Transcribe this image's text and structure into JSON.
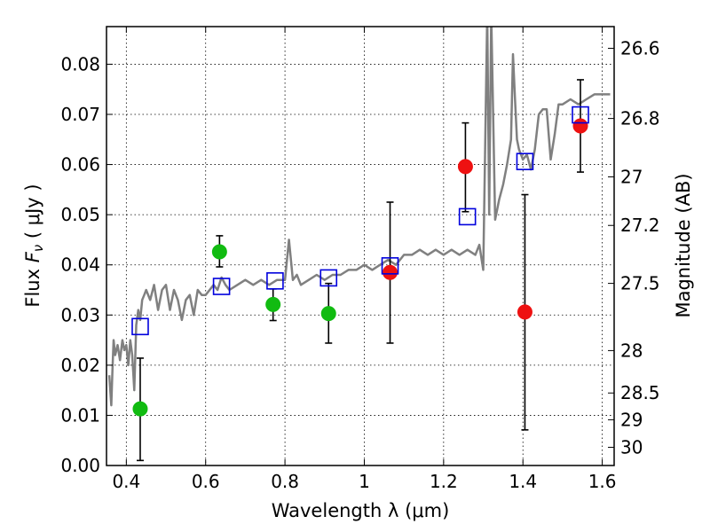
{
  "chart_data": {
    "type": "scatter",
    "title": "",
    "xlabel": "Wavelength  λ (μm)",
    "ylabel_left_prefix": "Flux  ",
    "ylabel_left_symbol": "F",
    "ylabel_left_subscript": "ν",
    "ylabel_left_suffix": "  ( μJy )",
    "ylabel_right": "Magnitude (AB)",
    "xlim": [
      0.35,
      1.63
    ],
    "ylim": [
      0.0,
      0.0875
    ],
    "grid": true,
    "x_ticks": [
      "0.4",
      "0.6",
      "0.8",
      "1",
      "1.2",
      "1.4",
      "1.6"
    ],
    "y_ticks": [
      "0.00",
      "0.01",
      "0.02",
      "0.03",
      "0.04",
      "0.05",
      "0.06",
      "0.07",
      "0.08"
    ],
    "right_axis_ticks": [
      "26.6",
      "26.8",
      "27",
      "27.2",
      "27.5",
      "28",
      "28.5",
      "29",
      "30"
    ],
    "colors": {
      "model_spectrum": "#808080",
      "green_points": "#11bb11",
      "red_points": "#ee1111",
      "model_photometry": "#0000dd",
      "errorbars": "#000000"
    },
    "series": [
      {
        "kind": "line",
        "x": [
          0.357,
          0.362,
          0.365,
          0.368,
          0.372,
          0.378,
          0.384,
          0.39,
          0.395,
          0.4,
          0.405,
          0.41,
          0.415,
          0.42,
          0.425,
          0.43,
          0.435,
          0.44,
          0.445,
          0.45,
          0.46,
          0.47,
          0.48,
          0.49,
          0.5,
          0.51,
          0.52,
          0.53,
          0.54,
          0.55,
          0.56,
          0.57,
          0.58,
          0.59,
          0.6,
          0.61,
          0.62,
          0.63,
          0.64,
          0.65,
          0.66,
          0.68,
          0.7,
          0.72,
          0.74,
          0.76,
          0.78,
          0.8,
          0.81,
          0.82,
          0.83,
          0.84,
          0.86,
          0.88,
          0.9,
          0.92,
          0.94,
          0.96,
          0.98,
          1.0,
          1.02,
          1.04,
          1.06,
          1.08,
          1.1,
          1.12,
          1.14,
          1.16,
          1.18,
          1.2,
          1.22,
          1.24,
          1.26,
          1.28,
          1.29,
          1.3,
          1.31,
          1.315,
          1.32,
          1.33,
          1.34,
          1.35,
          1.36,
          1.37,
          1.375,
          1.38,
          1.385,
          1.39,
          1.4,
          1.41,
          1.42,
          1.43,
          1.44,
          1.45,
          1.46,
          1.47,
          1.48,
          1.49,
          1.5,
          1.52,
          1.54,
          1.56,
          1.58,
          1.6,
          1.62
        ],
        "y": [
          0.018,
          0.012,
          0.019,
          0.025,
          0.022,
          0.024,
          0.021,
          0.025,
          0.023,
          0.024,
          0.02,
          0.025,
          0.022,
          0.015,
          0.028,
          0.031,
          0.029,
          0.033,
          0.034,
          0.035,
          0.033,
          0.036,
          0.031,
          0.035,
          0.036,
          0.031,
          0.035,
          0.033,
          0.029,
          0.033,
          0.034,
          0.03,
          0.035,
          0.034,
          0.034,
          0.035,
          0.036,
          0.035,
          0.0375,
          0.036,
          0.035,
          0.036,
          0.037,
          0.036,
          0.037,
          0.036,
          0.037,
          0.037,
          0.045,
          0.037,
          0.038,
          0.036,
          0.037,
          0.038,
          0.037,
          0.038,
          0.038,
          0.039,
          0.039,
          0.04,
          0.039,
          0.04,
          0.041,
          0.04,
          0.042,
          0.042,
          0.043,
          0.042,
          0.043,
          0.042,
          0.043,
          0.042,
          0.043,
          0.042,
          0.044,
          0.039,
          0.09,
          0.05,
          0.09,
          0.049,
          0.053,
          0.056,
          0.06,
          0.065,
          0.082,
          0.073,
          0.065,
          0.063,
          0.061,
          0.062,
          0.059,
          0.063,
          0.07,
          0.071,
          0.071,
          0.061,
          0.066,
          0.072,
          0.072,
          0.073,
          0.072,
          0.073,
          0.074,
          0.074,
          0.074
        ]
      },
      {
        "kind": "points",
        "marker": "circle",
        "color": "green",
        "x": [
          0.435,
          0.635,
          0.77,
          0.91
        ],
        "y": [
          0.0113,
          0.0426,
          0.0321,
          0.0303
        ],
        "yerr_low": [
          0.001,
          0.0396,
          0.0289,
          0.0244
        ],
        "yerr_high": [
          0.0214,
          0.0458,
          0.0352,
          0.0363
        ]
      },
      {
        "kind": "points",
        "marker": "circle",
        "color": "red",
        "x": [
          1.065,
          1.255,
          1.405,
          1.545
        ],
        "y": [
          0.0385,
          0.0596,
          0.0306,
          0.0677
        ],
        "yerr_low": [
          0.0244,
          0.0506,
          0.0071,
          0.0585
        ],
        "yerr_high": [
          0.0525,
          0.0683,
          0.054,
          0.0769
        ]
      },
      {
        "kind": "points",
        "marker": "open-square",
        "color": "blue",
        "x": [
          0.435,
          0.64,
          0.775,
          0.91,
          1.065,
          1.26,
          1.405,
          1.545
        ],
        "y": [
          0.0277,
          0.0357,
          0.0368,
          0.0374,
          0.0398,
          0.0496,
          0.0606,
          0.0699
        ]
      }
    ]
  }
}
